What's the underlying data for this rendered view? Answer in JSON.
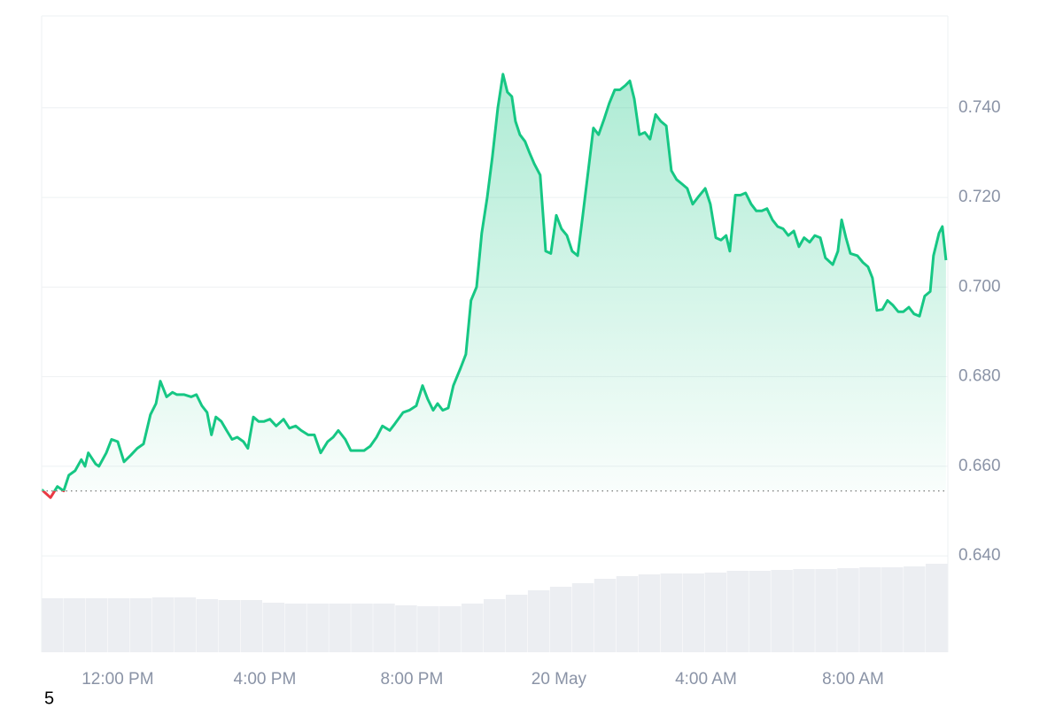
{
  "chart_data": {
    "type": "line",
    "x": [
      9.93,
      10.17,
      10.36,
      10.53,
      10.67,
      10.84,
      11.01,
      11.11,
      11.2,
      11.4,
      11.49,
      11.69,
      11.83,
      12.0,
      12.17,
      12.36,
      12.53,
      12.7,
      12.89,
      13.04,
      13.16,
      13.33,
      13.49,
      13.61,
      13.81,
      14.0,
      14.14,
      14.29,
      14.43,
      14.55,
      14.67,
      14.82,
      14.96,
      15.11,
      15.25,
      15.42,
      15.54,
      15.69,
      15.83,
      15.98,
      16.14,
      16.31,
      16.51,
      16.67,
      16.84,
      16.99,
      17.18,
      17.35,
      17.52,
      17.71,
      17.86,
      18.0,
      18.19,
      18.34,
      18.53,
      18.7,
      18.87,
      19.04,
      19.2,
      19.4,
      19.54,
      19.76,
      19.93,
      20.12,
      20.29,
      20.43,
      20.58,
      20.7,
      20.84,
      20.99,
      21.13,
      21.33,
      21.47,
      21.61,
      21.76,
      21.9,
      22.05,
      22.19,
      22.34,
      22.48,
      22.6,
      22.72,
      22.82,
      22.94,
      23.08,
      23.2,
      23.33,
      23.49,
      23.64,
      23.78,
      23.93,
      24.07,
      24.22,
      24.36,
      24.51,
      24.65,
      24.8,
      24.94,
      25.08,
      25.23,
      25.37,
      25.52,
      25.66,
      25.81,
      25.93,
      26.05,
      26.19,
      26.34,
      26.48,
      26.63,
      26.77,
      26.92,
      27.06,
      27.2,
      27.35,
      27.49,
      27.64,
      27.78,
      27.98,
      28.12,
      28.27,
      28.41,
      28.55,
      28.65,
      28.8,
      28.94,
      29.08,
      29.23,
      29.37,
      29.52,
      29.66,
      29.81,
      29.95,
      30.1,
      30.24,
      30.39,
      30.53,
      30.67,
      30.82,
      30.96,
      31.11,
      31.25,
      31.45,
      31.59,
      31.69,
      31.81,
      31.93,
      32.12,
      32.27,
      32.41,
      32.53,
      32.65,
      32.8,
      32.94,
      33.08,
      33.23,
      33.37,
      33.52,
      33.66,
      33.81,
      33.95,
      34.1,
      34.19,
      34.34,
      34.43,
      34.53
    ],
    "values": [
      0.6548,
      0.653,
      0.6555,
      0.6545,
      0.658,
      0.659,
      0.6615,
      0.66,
      0.663,
      0.6605,
      0.66,
      0.663,
      0.666,
      0.6655,
      0.661,
      0.6625,
      0.664,
      0.665,
      0.6715,
      0.674,
      0.679,
      0.6755,
      0.6765,
      0.676,
      0.676,
      0.6755,
      0.676,
      0.6735,
      0.672,
      0.667,
      0.671,
      0.67,
      0.668,
      0.666,
      0.6665,
      0.6655,
      0.664,
      0.671,
      0.67,
      0.67,
      0.6705,
      0.669,
      0.6705,
      0.6685,
      0.669,
      0.668,
      0.667,
      0.667,
      0.663,
      0.6655,
      0.6665,
      0.668,
      0.666,
      0.6635,
      0.6635,
      0.6635,
      0.6645,
      0.6665,
      0.669,
      0.668,
      0.6695,
      0.672,
      0.6725,
      0.6735,
      0.678,
      0.675,
      0.6725,
      0.674,
      0.6725,
      0.673,
      0.678,
      0.682,
      0.685,
      0.697,
      0.7,
      0.712,
      0.72,
      0.729,
      0.74,
      0.7475,
      0.7435,
      0.7425,
      0.737,
      0.734,
      0.7325,
      0.73,
      0.7275,
      0.725,
      0.708,
      0.7075,
      0.716,
      0.713,
      0.7115,
      0.708,
      0.707,
      0.716,
      0.726,
      0.7355,
      0.734,
      0.7375,
      0.741,
      0.744,
      0.744,
      0.745,
      0.746,
      0.742,
      0.734,
      0.7345,
      0.733,
      0.7385,
      0.737,
      0.736,
      0.726,
      0.724,
      0.723,
      0.722,
      0.7185,
      0.72,
      0.722,
      0.7185,
      0.711,
      0.7105,
      0.7115,
      0.708,
      0.7205,
      0.7205,
      0.721,
      0.7185,
      0.717,
      0.717,
      0.7175,
      0.715,
      0.7135,
      0.713,
      0.7115,
      0.7125,
      0.709,
      0.711,
      0.71,
      0.7115,
      0.711,
      0.7065,
      0.705,
      0.708,
      0.715,
      0.711,
      0.7075,
      0.707,
      0.7055,
      0.7045,
      0.702,
      0.6948,
      0.695,
      0.697,
      0.696,
      0.6945,
      0.6945,
      0.6955,
      0.694,
      0.6935,
      0.698,
      0.699,
      0.707,
      0.712,
      0.7135,
      0.706
    ],
    "baseline": 0.6545,
    "color": "#16c784",
    "below_color": "#ea3943",
    "xlim": [
      9.93,
      34.58
    ],
    "xticks": [
      {
        "value": 12,
        "label": "12:00 PM"
      },
      {
        "value": 16,
        "label": "4:00 PM"
      },
      {
        "value": 20,
        "label": "8:00 PM"
      },
      {
        "value": 24,
        "label": "20 May"
      },
      {
        "value": 28,
        "label": "4:00 AM"
      },
      {
        "value": 32,
        "label": "8:00 AM"
      }
    ],
    "ylim": [
      0.6185,
      0.7605
    ],
    "yticks": [
      {
        "value": 0.64,
        "label": "0.640"
      },
      {
        "value": 0.66,
        "label": "0.660"
      },
      {
        "value": 0.68,
        "label": "0.680"
      },
      {
        "value": 0.7,
        "label": "0.700"
      },
      {
        "value": 0.72,
        "label": "0.720"
      },
      {
        "value": 0.74,
        "label": "0.740"
      }
    ],
    "grid": true,
    "volume": {
      "values": [
        61,
        61,
        61,
        61,
        61,
        62,
        62,
        60,
        59,
        59,
        56,
        55,
        55,
        55,
        55,
        55,
        53,
        52,
        52,
        55,
        60,
        65,
        70,
        74,
        78,
        83,
        86,
        88,
        89,
        89,
        90,
        92,
        92,
        93,
        94,
        94,
        95,
        96,
        96,
        97,
        100
      ],
      "ylim": [
        0,
        719
      ],
      "color": "#eceef2"
    },
    "note": "5"
  }
}
